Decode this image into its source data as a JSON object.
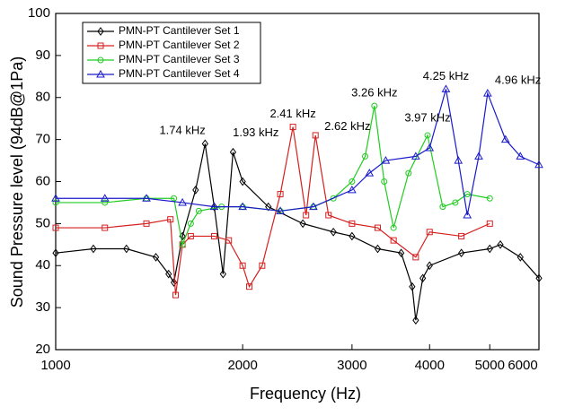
{
  "chart_data": {
    "type": "line",
    "xlabel": "Frequency (Hz)",
    "ylabel": "Sound Pressure level (94dB@1Pa)",
    "xscale": "log",
    "xlim": [
      1000,
      6000
    ],
    "xticks": [
      1000,
      2000,
      3000,
      4000,
      5000,
      6000
    ],
    "ylim": [
      20,
      100
    ],
    "yticks": [
      20,
      30,
      40,
      50,
      60,
      70,
      80,
      90,
      100
    ],
    "legend": "upper left",
    "series": [
      {
        "name": "PMN-PT Cantilever Set 1",
        "color": "#000000",
        "marker": "diamond",
        "x": [
          1000,
          1150,
          1300,
          1450,
          1520,
          1550,
          1600,
          1680,
          1740,
          1800,
          1860,
          1930,
          2000,
          2200,
          2500,
          2800,
          3000,
          3300,
          3600,
          3750,
          3800,
          3900,
          4000,
          4500,
          5000,
          5200,
          5600,
          6000
        ],
        "values": [
          43,
          44,
          44,
          42,
          38,
          36,
          47,
          58,
          69,
          54,
          38,
          67,
          60,
          54,
          50,
          48,
          47,
          44,
          43,
          35,
          27,
          37,
          40,
          43,
          44,
          45,
          42,
          37
        ]
      },
      {
        "name": "PMN-PT Cantilever Set 2",
        "color": "#d62020",
        "marker": "square",
        "x": [
          1000,
          1200,
          1400,
          1530,
          1560,
          1600,
          1650,
          1800,
          1900,
          2000,
          2050,
          2150,
          2300,
          2410,
          2530,
          2620,
          2750,
          3000,
          3300,
          3500,
          3800,
          4000,
          4500,
          5000
        ],
        "values": [
          49,
          49,
          50,
          51,
          33,
          45,
          47,
          47,
          46,
          40,
          35,
          40,
          57,
          73,
          52,
          71,
          52,
          50,
          49,
          46,
          42,
          48,
          47,
          50
        ]
      },
      {
        "name": "PMN-PT Cantilever Set 3",
        "color": "#22cc22",
        "marker": "circle",
        "x": [
          1000,
          1200,
          1400,
          1550,
          1600,
          1650,
          1700,
          1850,
          2000,
          2300,
          2600,
          2800,
          3000,
          3150,
          3260,
          3380,
          3500,
          3700,
          3970,
          4200,
          4400,
          4600,
          5000
        ],
        "values": [
          55,
          55,
          56,
          56,
          45,
          50,
          53,
          54,
          54,
          53,
          54,
          56,
          60,
          66,
          78,
          60,
          49,
          62,
          71,
          54,
          55,
          57,
          56
        ]
      },
      {
        "name": "PMN-PT Cantilever Set 4",
        "color": "#1a1acc",
        "marker": "triangle",
        "x": [
          1000,
          1200,
          1400,
          1600,
          1800,
          2000,
          2300,
          2600,
          3000,
          3200,
          3400,
          3800,
          4000,
          4250,
          4450,
          4600,
          4800,
          4960,
          5300,
          5600,
          6000
        ],
        "values": [
          56,
          56,
          56,
          55,
          54,
          54,
          53,
          54,
          58,
          62,
          65,
          66,
          68,
          82,
          65,
          52,
          66,
          81,
          70,
          66,
          64
        ]
      }
    ],
    "annotations": [
      {
        "text": "1.74 kHz",
        "x": 1600,
        "y": 72
      },
      {
        "text": "1.93 kHz",
        "x": 2100,
        "y": 71.5
      },
      {
        "text": "2.41 kHz",
        "x": 2410,
        "y": 76
      },
      {
        "text": "2.62 kHz",
        "x": 2950,
        "y": 73
      },
      {
        "text": "3.26 kHz",
        "x": 3260,
        "y": 81
      },
      {
        "text": "3.97 kHz",
        "x": 3970,
        "y": 75
      },
      {
        "text": "4.25 kHz",
        "x": 4250,
        "y": 85
      },
      {
        "text": "4.96 kHz",
        "x": 5550,
        "y": 84
      }
    ]
  }
}
